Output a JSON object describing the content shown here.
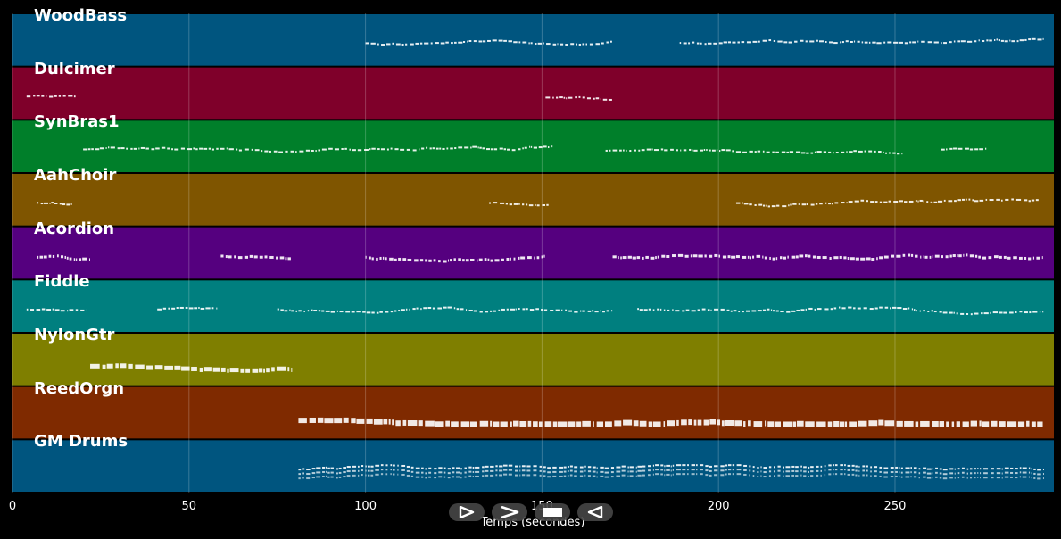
{
  "chart_data": {
    "type": "piano-roll",
    "xlabel": "Temps (secondes)",
    "xlim": [
      0,
      295
    ],
    "xticks": [
      0,
      50,
      100,
      150,
      200,
      250
    ],
    "xtick_labels": [
      "0",
      "50",
      "100",
      "150",
      "200",
      "250"
    ],
    "grid": true,
    "tracks": [
      {
        "name": "WoodBass",
        "color": "#00557f",
        "segments": [
          [
            100,
            170
          ],
          [
            189,
            292
          ]
        ],
        "note_height": 2
      },
      {
        "name": "Dulcimer",
        "color": "#7f002a",
        "segments": [
          [
            4,
            18
          ],
          [
            151,
            170
          ]
        ],
        "note_height": 2
      },
      {
        "name": "SynBras1",
        "color": "#007f2a",
        "segments": [
          [
            20,
            153
          ],
          [
            168,
            252
          ],
          [
            263,
            276
          ]
        ],
        "note_height": 2
      },
      {
        "name": "AahChoir",
        "color": "#7f5500",
        "segments": [
          [
            7,
            17
          ],
          [
            135,
            152
          ],
          [
            205,
            291
          ]
        ],
        "note_height": 2
      },
      {
        "name": "Acordion",
        "color": "#55007f",
        "segments": [
          [
            7,
            22
          ],
          [
            59,
            79
          ],
          [
            100,
            151
          ],
          [
            170,
            292
          ]
        ],
        "note_height": 3
      },
      {
        "name": "Fiddle",
        "color": "#007f7f",
        "segments": [
          [
            4,
            21
          ],
          [
            41,
            58
          ],
          [
            75,
            170
          ],
          [
            177,
            292
          ]
        ],
        "note_height": 2
      },
      {
        "name": "NylonGtr",
        "color": "#7f7f00",
        "segments": [
          [
            22,
            79
          ]
        ],
        "note_height": 5
      },
      {
        "name": "ReedOrgn",
        "color": "#7f2a00",
        "segments": [
          [
            81,
            292
          ]
        ],
        "note_height": 6
      },
      {
        "name": "GM Drums",
        "color": "#00557f",
        "segments": [
          [
            81,
            292
          ]
        ],
        "note_height": 2
      }
    ]
  },
  "controls": {
    "play_label": "Play",
    "fast_forward_label": "Fast forward",
    "stop_label": "Stop",
    "rewind_label": "Rewind"
  }
}
